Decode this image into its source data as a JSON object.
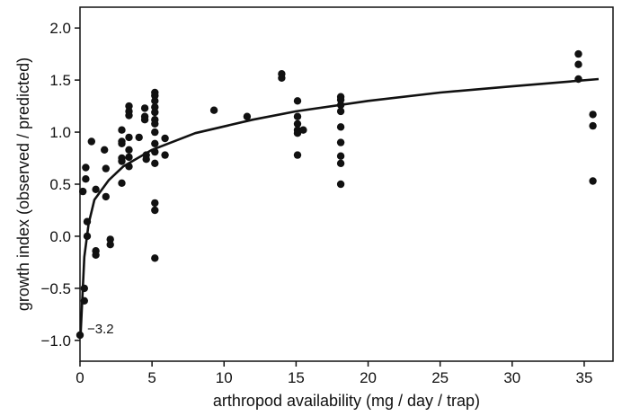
{
  "chart_data": {
    "type": "scatter",
    "title": "",
    "xlabel": "arthropod availability (mg / day / trap)",
    "ylabel": "growth index (observed / predicted)",
    "xlim": [
      0,
      37
    ],
    "ylim": [
      -1.2,
      2.2
    ],
    "xticks": [
      {
        "value": 0,
        "label": "0"
      },
      {
        "value": 5,
        "label": "5"
      },
      {
        "value": 10,
        "label": "10"
      },
      {
        "value": 15,
        "label": "15"
      },
      {
        "value": 20,
        "label": "20"
      },
      {
        "value": 25,
        "label": "25"
      },
      {
        "value": 30,
        "label": "30"
      },
      {
        "value": 35,
        "label": "35"
      }
    ],
    "yticks": [
      {
        "value": -1.0,
        "label": "−1.0"
      },
      {
        "value": -0.5,
        "label": "−0.5"
      },
      {
        "value": 0.0,
        "label": "0.0"
      },
      {
        "value": 0.5,
        "label": "0.5"
      },
      {
        "value": 1.0,
        "label": "1.0"
      },
      {
        "value": 1.5,
        "label": "1.5"
      },
      {
        "value": 2.0,
        "label": "2.0"
      }
    ],
    "grid": false,
    "legend": "none",
    "annotation": {
      "text": "−3.2",
      "x": 0,
      "y": -0.95
    },
    "points": [
      [
        0.0,
        -0.95
      ],
      [
        0.2,
        0.43
      ],
      [
        0.3,
        -0.5
      ],
      [
        0.3,
        -0.62
      ],
      [
        0.4,
        0.55
      ],
      [
        0.4,
        0.66
      ],
      [
        0.5,
        0.14
      ],
      [
        0.5,
        0.0
      ],
      [
        0.8,
        0.91
      ],
      [
        1.1,
        0.45
      ],
      [
        1.1,
        -0.14
      ],
      [
        1.1,
        -0.18
      ],
      [
        1.7,
        0.83
      ],
      [
        1.8,
        0.65
      ],
      [
        1.8,
        0.38
      ],
      [
        2.1,
        -0.03
      ],
      [
        2.1,
        -0.08
      ],
      [
        2.9,
        1.02
      ],
      [
        2.9,
        0.91
      ],
      [
        2.9,
        0.89
      ],
      [
        2.9,
        0.75
      ],
      [
        2.9,
        0.72
      ],
      [
        2.9,
        0.51
      ],
      [
        3.4,
        1.25
      ],
      [
        3.4,
        1.2
      ],
      [
        3.4,
        1.16
      ],
      [
        3.4,
        0.95
      ],
      [
        3.4,
        0.83
      ],
      [
        3.4,
        0.76
      ],
      [
        3.4,
        0.67
      ],
      [
        4.1,
        0.95
      ],
      [
        4.5,
        1.23
      ],
      [
        4.5,
        1.15
      ],
      [
        4.5,
        1.12
      ],
      [
        4.6,
        0.78
      ],
      [
        4.6,
        0.74
      ],
      [
        5.2,
        1.38
      ],
      [
        5.2,
        1.35
      ],
      [
        5.2,
        1.3
      ],
      [
        5.2,
        1.24
      ],
      [
        5.2,
        1.19
      ],
      [
        5.2,
        1.12
      ],
      [
        5.2,
        1.08
      ],
      [
        5.2,
        1.0
      ],
      [
        5.2,
        0.89
      ],
      [
        5.2,
        0.81
      ],
      [
        5.2,
        0.7
      ],
      [
        5.2,
        0.32
      ],
      [
        5.2,
        0.25
      ],
      [
        5.2,
        -0.21
      ],
      [
        5.9,
        0.94
      ],
      [
        5.9,
        0.78
      ],
      [
        9.3,
        1.21
      ],
      [
        11.6,
        1.15
      ],
      [
        14.0,
        1.56
      ],
      [
        14.0,
        1.52
      ],
      [
        15.1,
        1.3
      ],
      [
        15.1,
        1.15
      ],
      [
        15.1,
        1.08
      ],
      [
        15.1,
        1.02
      ],
      [
        15.1,
        0.99
      ],
      [
        15.1,
        0.78
      ],
      [
        15.5,
        1.02
      ],
      [
        18.1,
        1.34
      ],
      [
        18.1,
        1.31
      ],
      [
        18.1,
        1.26
      ],
      [
        18.1,
        1.2
      ],
      [
        18.1,
        1.05
      ],
      [
        18.1,
        0.9
      ],
      [
        18.1,
        0.77
      ],
      [
        18.1,
        0.7
      ],
      [
        18.1,
        0.5
      ],
      [
        34.6,
        1.75
      ],
      [
        34.6,
        1.65
      ],
      [
        34.6,
        1.51
      ],
      [
        35.6,
        1.17
      ],
      [
        35.6,
        1.06
      ],
      [
        35.6,
        0.53
      ]
    ],
    "fit_curve": {
      "type": "logarithmic",
      "x": [
        0.05,
        0.3,
        0.6,
        1.0,
        2.0,
        3.0,
        5.0,
        8.0,
        12.0,
        15.0,
        20.0,
        25.0,
        30.0,
        36.0
      ],
      "y": [
        -0.92,
        -0.2,
        0.12,
        0.35,
        0.54,
        0.67,
        0.83,
        0.99,
        1.12,
        1.2,
        1.3,
        1.38,
        1.44,
        1.51
      ]
    }
  }
}
